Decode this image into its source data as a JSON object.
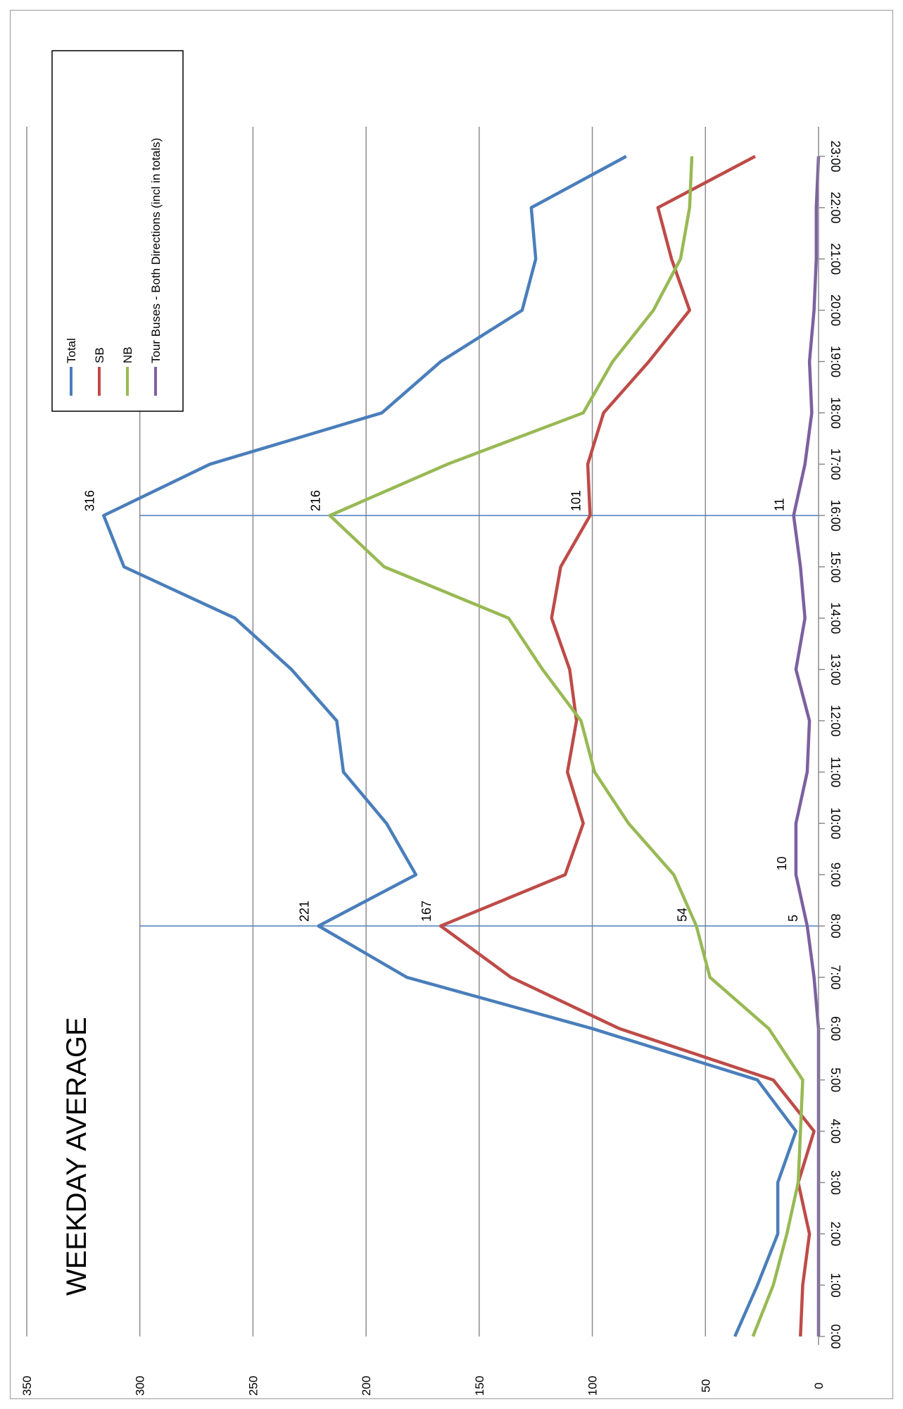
{
  "chart_data": {
    "type": "line",
    "title": "WEEKDAY AVERAGE",
    "xlabel": "",
    "ylabel": "",
    "ylim": [
      0,
      350
    ],
    "yticks": [
      0,
      50,
      100,
      150,
      200,
      250,
      300,
      350
    ],
    "grid": true,
    "orientation": "rotated-90-clockwise",
    "legend_position": "top-right",
    "categories": [
      "0:00",
      "1:00",
      "2:00",
      "3:00",
      "4:00",
      "5:00",
      "6:00",
      "7:00",
      "8:00",
      "9:00",
      "10:00",
      "11:00",
      "12:00",
      "13:00",
      "14:00",
      "15:00",
      "16:00",
      "17:00",
      "18:00",
      "19:00",
      "20:00",
      "21:00",
      "22:00",
      "23:00"
    ],
    "series": [
      {
        "name": "Total",
        "color": "#4a7ebb",
        "values": [
          37,
          27,
          18,
          18,
          10,
          27,
          100,
          182,
          221,
          178,
          191,
          210,
          213,
          233,
          258,
          307,
          316,
          269,
          193,
          167,
          131,
          125,
          127,
          85
        ]
      },
      {
        "name": "SB",
        "color": "#be4b48",
        "values": [
          8,
          7,
          4,
          9,
          2,
          20,
          88,
          136,
          167,
          112,
          104,
          111,
          107,
          110,
          118,
          114,
          101,
          102,
          95,
          75,
          57,
          65,
          71,
          28
        ]
      },
      {
        "name": "NB",
        "color": "#98b954",
        "values": [
          29,
          20,
          14,
          9,
          8,
          7,
          22,
          48,
          54,
          64,
          84,
          99,
          105,
          122,
          137,
          192,
          216,
          164,
          104,
          91,
          73,
          61,
          57,
          56
        ]
      },
      {
        "name": "Tour Buses - Both Directions (incl in totals)",
        "color": "#7d60a0",
        "values": [
          0,
          0,
          0,
          0,
          0,
          0,
          0,
          2,
          5,
          10,
          10,
          5,
          4,
          10,
          6,
          8,
          11,
          6,
          3,
          4,
          2,
          1,
          1,
          0
        ]
      }
    ],
    "reference_lines": [
      {
        "category": "8:00",
        "color": "#4a7ebb"
      },
      {
        "category": "16:00",
        "color": "#4a7ebb"
      }
    ],
    "annotations": [
      {
        "category": "8:00",
        "value": 221,
        "label": "221"
      },
      {
        "category": "8:00",
        "value": 167,
        "label": "167"
      },
      {
        "category": "8:00",
        "value": 54,
        "label": "54"
      },
      {
        "category": "8:00",
        "value": 5,
        "label": "5"
      },
      {
        "category": "9:00",
        "value": 10,
        "label": "10"
      },
      {
        "category": "16:00",
        "value": 316,
        "label": "316"
      },
      {
        "category": "16:00",
        "value": 216,
        "label": "216"
      },
      {
        "category": "16:00",
        "value": 101,
        "label": "101"
      },
      {
        "category": "16:00",
        "value": 11,
        "label": "11"
      }
    ]
  }
}
